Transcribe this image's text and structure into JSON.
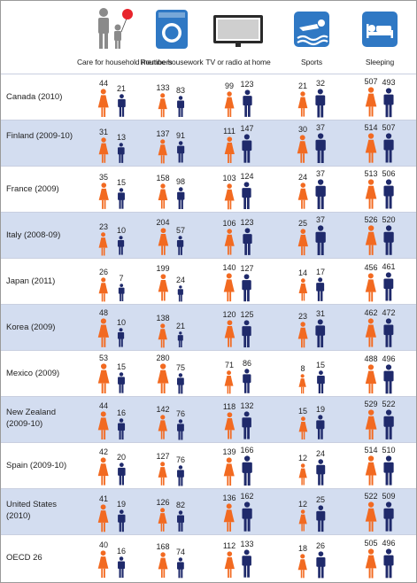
{
  "categories": [
    {
      "label": "Care for household members",
      "icon": "family-icon"
    },
    {
      "label": "Routine housework",
      "icon": "washing-machine-icon"
    },
    {
      "label": "TV or radio at home",
      "icon": "television-icon"
    },
    {
      "label": "Sports",
      "icon": "swimmer-icon"
    },
    {
      "label": "Sleeping",
      "icon": "bed-icon"
    }
  ],
  "colors": {
    "women": "#f26a21",
    "men": "#1f2a6b",
    "stripe": "#d3ddf0",
    "header_icon": "#2f78c4"
  },
  "chart_data": {
    "type": "pictograph",
    "unit": "minutes per day",
    "series": [
      {
        "name": "Women",
        "color": "#f26a21"
      },
      {
        "name": "Men",
        "color": "#1f2a6b"
      }
    ],
    "rows": [
      {
        "label": "Canada (2010)",
        "values": [
          [
            44,
            21
          ],
          [
            133,
            83
          ],
          [
            99,
            123
          ],
          [
            21,
            32
          ],
          [
            507,
            493
          ]
        ]
      },
      {
        "label": "Finland (2009-10)",
        "values": [
          [
            31,
            13
          ],
          [
            137,
            91
          ],
          [
            111,
            147
          ],
          [
            30,
            37
          ],
          [
            514,
            507
          ]
        ]
      },
      {
        "label": "France (2009)",
        "values": [
          [
            35,
            15
          ],
          [
            158,
            98
          ],
          [
            103,
            124
          ],
          [
            24,
            37
          ],
          [
            513,
            506
          ]
        ]
      },
      {
        "label": "Italy (2008-09)",
        "values": [
          [
            23,
            10
          ],
          [
            204,
            57
          ],
          [
            106,
            123
          ],
          [
            25,
            37
          ],
          [
            526,
            520
          ]
        ]
      },
      {
        "label": "Japan (2011)",
        "values": [
          [
            26,
            7
          ],
          [
            199,
            24
          ],
          [
            140,
            127
          ],
          [
            14,
            17
          ],
          [
            456,
            461
          ]
        ]
      },
      {
        "label": "Korea (2009)",
        "values": [
          [
            48,
            10
          ],
          [
            138,
            21
          ],
          [
            120,
            125
          ],
          [
            23,
            31
          ],
          [
            462,
            472
          ]
        ]
      },
      {
        "label": "Mexico (2009)",
        "values": [
          [
            53,
            15
          ],
          [
            280,
            75
          ],
          [
            71,
            86
          ],
          [
            8,
            15
          ],
          [
            488,
            496
          ]
        ]
      },
      {
        "label": "New Zealand (2009-10)",
        "values": [
          [
            44,
            16
          ],
          [
            142,
            76
          ],
          [
            118,
            132
          ],
          [
            15,
            19
          ],
          [
            529,
            522
          ]
        ]
      },
      {
        "label": "Spain (2009-10)",
        "values": [
          [
            42,
            20
          ],
          [
            127,
            76
          ],
          [
            139,
            166
          ],
          [
            12,
            24
          ],
          [
            514,
            510
          ]
        ]
      },
      {
        "label": "United States (2010)",
        "values": [
          [
            41,
            19
          ],
          [
            126,
            82
          ],
          [
            136,
            162
          ],
          [
            12,
            25
          ],
          [
            522,
            509
          ]
        ]
      },
      {
        "label": "OECD 26",
        "values": [
          [
            40,
            16
          ],
          [
            168,
            74
          ],
          [
            112,
            133
          ],
          [
            18,
            26
          ],
          [
            505,
            496
          ]
        ]
      }
    ]
  }
}
